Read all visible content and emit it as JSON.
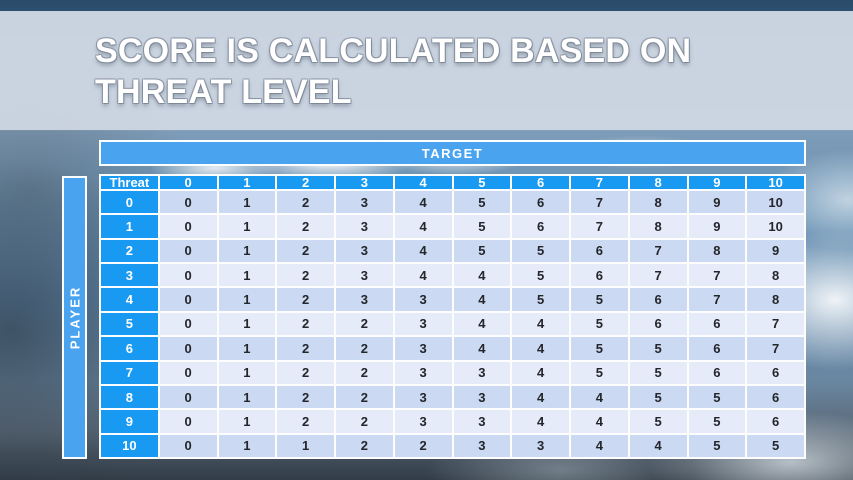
{
  "title": {
    "line1": "SCORE IS CALCULATED BASED ON",
    "line2": "THREAT LEVEL"
  },
  "chart_data": {
    "type": "table",
    "title": "SCORE IS CALCULATED BASED ON THREAT LEVEL",
    "column_group_label": "TARGET",
    "row_group_label": "PLAYER",
    "corner_label": "Threat",
    "columns": [
      "0",
      "1",
      "2",
      "3",
      "4",
      "5",
      "6",
      "7",
      "8",
      "9",
      "10"
    ],
    "rows": [
      {
        "label": "0",
        "values": [
          0,
          1,
          2,
          3,
          4,
          5,
          6,
          7,
          8,
          9,
          10
        ]
      },
      {
        "label": "1",
        "values": [
          0,
          1,
          2,
          3,
          4,
          5,
          6,
          7,
          8,
          9,
          10
        ]
      },
      {
        "label": "2",
        "values": [
          0,
          1,
          2,
          3,
          4,
          5,
          5,
          6,
          7,
          8,
          9
        ]
      },
      {
        "label": "3",
        "values": [
          0,
          1,
          2,
          3,
          4,
          4,
          5,
          6,
          7,
          7,
          8
        ]
      },
      {
        "label": "4",
        "values": [
          0,
          1,
          2,
          3,
          3,
          4,
          5,
          5,
          6,
          7,
          8
        ]
      },
      {
        "label": "5",
        "values": [
          0,
          1,
          2,
          2,
          3,
          4,
          4,
          5,
          6,
          6,
          7
        ]
      },
      {
        "label": "6",
        "values": [
          0,
          1,
          2,
          2,
          3,
          4,
          4,
          5,
          5,
          6,
          7
        ]
      },
      {
        "label": "7",
        "values": [
          0,
          1,
          2,
          2,
          3,
          3,
          4,
          5,
          5,
          6,
          6
        ]
      },
      {
        "label": "8",
        "values": [
          0,
          1,
          2,
          2,
          3,
          3,
          4,
          4,
          5,
          5,
          6
        ]
      },
      {
        "label": "9",
        "values": [
          0,
          1,
          2,
          2,
          3,
          3,
          4,
          4,
          5,
          5,
          6
        ]
      },
      {
        "label": "10",
        "values": [
          0,
          1,
          1,
          2,
          2,
          3,
          3,
          4,
          4,
          5,
          5
        ]
      }
    ]
  },
  "colors": {
    "header_blue": "#189af2",
    "band_blue": "#4aa3ef",
    "row_even": "#ccd9f3",
    "row_odd": "#e6ebf9",
    "cell_text": "#23262a"
  }
}
